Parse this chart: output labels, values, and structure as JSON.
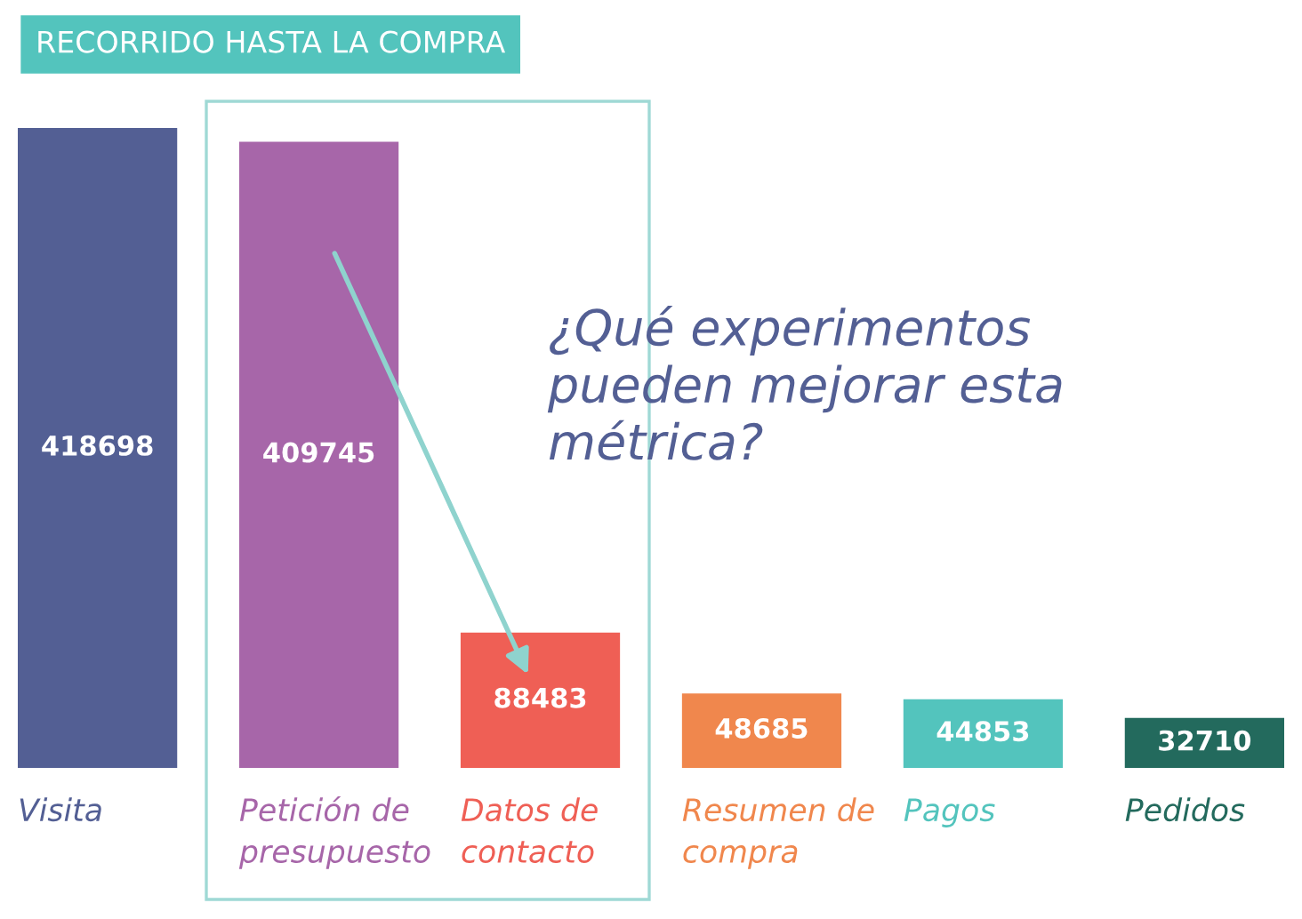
{
  "chart_data": {
    "type": "bar",
    "title": "RECORRIDO HASTA LA COMPRA",
    "categories": [
      "Visita",
      "Petición de\npresupuesto",
      "Datos de\ncontacto",
      "Resumen de\ncompra",
      "Pagos",
      "Pedidos"
    ],
    "values": [
      418698,
      409745,
      88483,
      48685,
      44853,
      32710
    ],
    "colors": [
      "#535f94",
      "#a766a9",
      "#ef5f55",
      "#f0874d",
      "#53c4bd",
      "#236a5d"
    ],
    "data_labels": true,
    "annotations": [
      "¿Qué experimentos\npueden mejorar esta\nmétrica?"
    ]
  }
}
